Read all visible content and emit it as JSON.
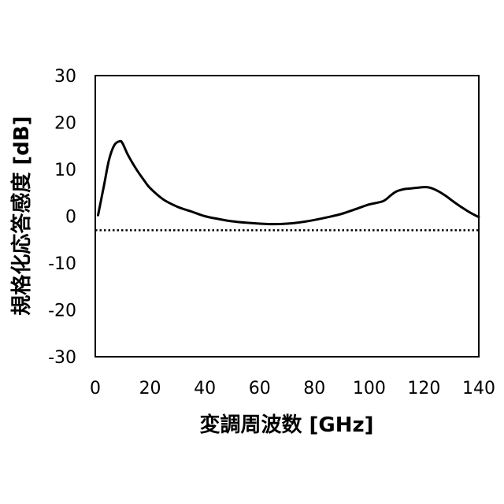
{
  "chart_data": {
    "type": "line",
    "title": "",
    "xlabel": "変調周波数 [GHz]",
    "ylabel": "規格化応答感度 [dB]",
    "xlim": [
      0,
      140
    ],
    "ylim": [
      -30,
      30
    ],
    "x_ticks": [
      "0",
      "20",
      "40",
      "60",
      "80",
      "100",
      "120",
      "140"
    ],
    "y_ticks": [
      "30",
      "20",
      "10",
      "0",
      "-10",
      "-20",
      "-30"
    ],
    "grid": false,
    "legend": "none",
    "reference_line": {
      "y": -3,
      "style": "dotted"
    },
    "series": [
      {
        "x": [
          1,
          3,
          5,
          7,
          9,
          10,
          12,
          15,
          18,
          20,
          25,
          30,
          35,
          40,
          45,
          50,
          55,
          60,
          65,
          70,
          75,
          80,
          85,
          90,
          95,
          100,
          105,
          108,
          110,
          113,
          115,
          118,
          120,
          122,
          125,
          128,
          131,
          134,
          137,
          140
        ],
        "y": [
          0.2,
          6,
          12,
          15.2,
          16,
          15.5,
          13,
          10,
          7.5,
          6,
          3.5,
          2,
          1,
          0,
          -0.6,
          -1.1,
          -1.4,
          -1.6,
          -1.7,
          -1.6,
          -1.3,
          -0.8,
          -0.2,
          0.5,
          1.5,
          2.5,
          3.2,
          4.5,
          5.3,
          5.8,
          5.9,
          6.1,
          6.2,
          6.1,
          5.4,
          4.3,
          3.0,
          1.8,
          0.7,
          -0.2
        ]
      }
    ]
  }
}
